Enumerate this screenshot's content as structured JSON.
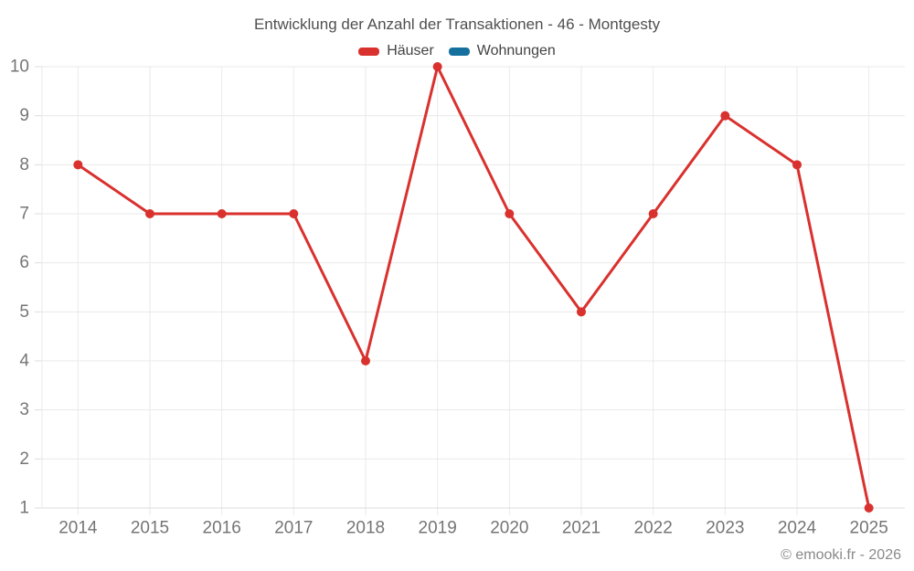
{
  "title": "Entwicklung der Anzahl der Transaktionen - 46 - Montgesty",
  "legend": [
    {
      "label": "Häuser",
      "color": "#d9312e"
    },
    {
      "label": "Wohnungen",
      "color": "#16709e"
    }
  ],
  "footer": {
    "copyright": "© emooki.fr - 2026"
  },
  "colors": {
    "grid": "#eaeaea",
    "axis_line": "#dcdcdc",
    "tick_label": "#757575",
    "title_text": "#4f4f4f",
    "legend_text": "#434343",
    "copyright_text": "#898989"
  },
  "chart_data": {
    "type": "line",
    "title": "Entwicklung der Anzahl der Transaktionen - 46 - Montgesty",
    "x": [
      "2014",
      "2015",
      "2016",
      "2017",
      "2018",
      "2019",
      "2020",
      "2021",
      "2022",
      "2023",
      "2024",
      "2025"
    ],
    "series": [
      {
        "name": "Häuser",
        "color": "#d9312e",
        "values": [
          8,
          7,
          7,
          7,
          4,
          10,
          7,
          5,
          7,
          9,
          8,
          1
        ]
      },
      {
        "name": "Wohnungen",
        "color": "#16709e",
        "values": []
      }
    ],
    "xlabel": "",
    "ylabel": "",
    "ylim": [
      1,
      10
    ],
    "yticks": [
      1,
      2,
      3,
      4,
      5,
      6,
      7,
      8,
      9,
      10
    ],
    "grid": true,
    "legend_position": "top",
    "point_style": "filled-circle"
  }
}
